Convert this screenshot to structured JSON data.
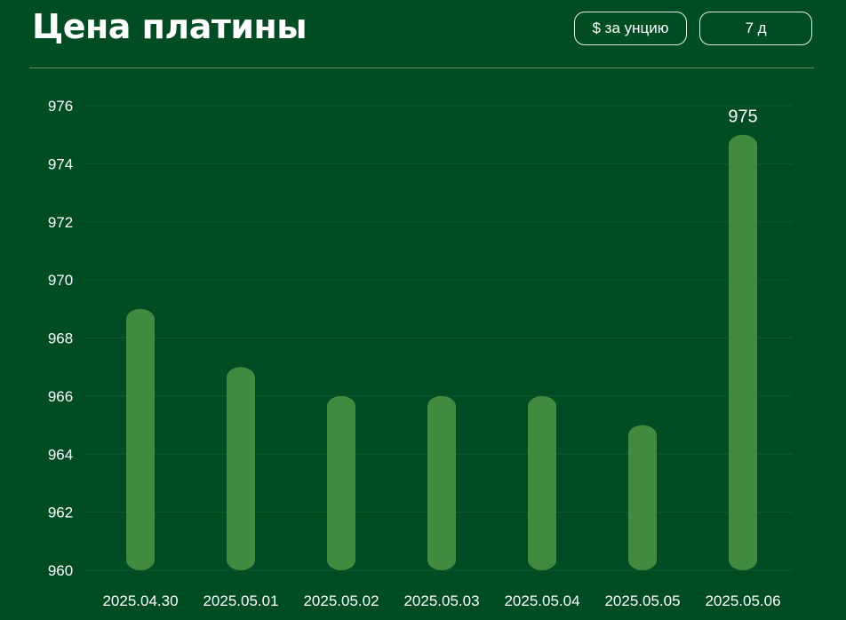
{
  "header": {
    "title": "Цена платины",
    "unit_button": "$ за унцию",
    "period_button": "7 д"
  },
  "colors": {
    "background": "#004d23",
    "bar": "#438a41",
    "grid": "#0f5a2c"
  },
  "chart_data": {
    "type": "bar",
    "title": "Цена платины",
    "xlabel": "",
    "ylabel": "",
    "categories": [
      "2025.04.30",
      "2025.05.01",
      "2025.05.02",
      "2025.05.03",
      "2025.05.04",
      "2025.05.05",
      "2025.05.06"
    ],
    "values": [
      969,
      967,
      966,
      966,
      966,
      965,
      975
    ],
    "ylim": [
      960,
      976
    ],
    "yticks": [
      960,
      962,
      964,
      966,
      968,
      970,
      972,
      974,
      976
    ],
    "data_labels": [
      {
        "category": "2025.05.06",
        "value": "975"
      }
    ],
    "grid": true,
    "legend": "none"
  }
}
